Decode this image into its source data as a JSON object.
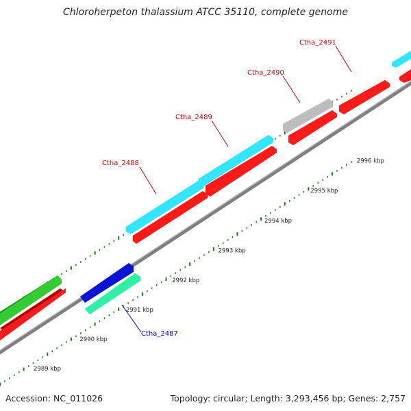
{
  "title": "Chloroherpeton thalassium ATCC 35110, complete genome",
  "footer": {
    "accession": "Accession: NC_011026",
    "summary": "Topology: circular; Length: 3,293,456 bp; Genes: 2,757"
  },
  "kbp_labels": [
    {
      "text": "2989 kbp",
      "pos": 2989
    },
    {
      "text": "2990 kbp",
      "pos": 2990
    },
    {
      "text": "2991 kbp",
      "pos": 2991
    },
    {
      "text": "2992 kbp",
      "pos": 2992
    },
    {
      "text": "2993 kbp",
      "pos": 2993
    },
    {
      "text": "2994 kbp",
      "pos": 2994
    },
    {
      "text": "2995 kbp",
      "pos": 2995
    },
    {
      "text": "2996 kbp",
      "pos": 2996
    }
  ],
  "gene_labels": [
    {
      "text": "Ctha_2487",
      "strand": "reverse",
      "color": "#0000cc"
    },
    {
      "text": "Ctha_2488",
      "strand": "forward",
      "color": "#cc0000"
    },
    {
      "text": "Ctha_2489",
      "strand": "forward",
      "color": "#cc0000"
    },
    {
      "text": "Ctha_2490",
      "strand": "forward",
      "color": "#cc0000"
    },
    {
      "text": "Ctha_2491",
      "strand": "forward",
      "color": "#cc0000"
    }
  ],
  "colors": {
    "cds_track": "#ff1a1a",
    "cyan_track": "#33e6ff",
    "blue_track": "#0a14d6",
    "teal_track": "#2ef0a6",
    "green_track": "#33cc33",
    "gray_track": "#bdbdbd",
    "backbone": "#8a8a8a",
    "tick": "#1a7a1a"
  }
}
